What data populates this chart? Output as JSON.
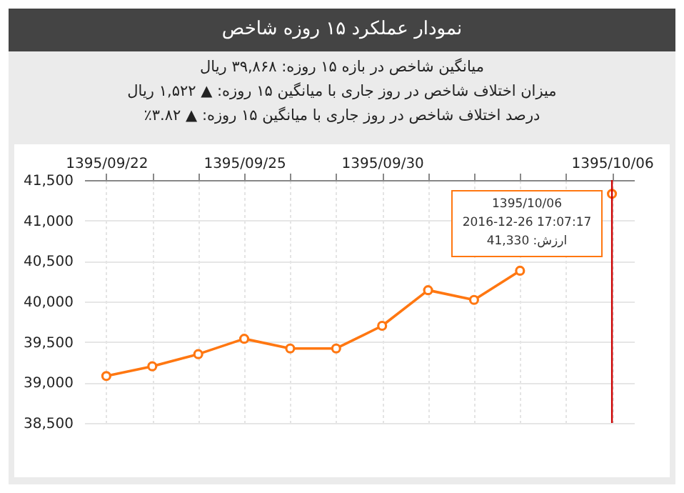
{
  "chart_data": {
    "type": "line",
    "title": "نمودار عملکرد ۱۵ روزه شاخص",
    "annotations": [
      "میانگین شاخص در بازه ۱۵ روزه: ۳۹,۸۶۸ ریال",
      "میزان اختلاف شاخص در روز جاری با میانگین ۱۵ روزه: ▲ ۱,۵۲۲ ریال",
      "درصد اختلاف شاخص در روز جاری با میانگین ۱۵ روزه: ▲ ۳.۸۲٪",
      "1395/10/06\n2016-12-26 17:07:17\nارزش: 41,330"
    ],
    "categories": [
      "1395/09/22",
      null,
      null,
      "1395/09/25",
      null,
      null,
      "1395/09/30",
      null,
      null,
      null,
      null,
      "1395/10/06"
    ],
    "series": [
      {
        "color": "#ff7711",
        "values": [
          39080,
          39200,
          39350,
          39540,
          39420,
          39420,
          39700,
          40140,
          40020,
          40380,
          null,
          41330
        ]
      }
    ],
    "ylim": [
      38500,
      41500
    ],
    "yticks": [
      {
        "value": 38500,
        "label": "38,500"
      },
      {
        "value": 39000,
        "label": "39,000"
      },
      {
        "value": 39500,
        "label": "39,500"
      },
      {
        "value": 40000,
        "label": "40,000"
      },
      {
        "value": 40500,
        "label": "40,500"
      },
      {
        "value": 41000,
        "label": "41,000"
      },
      {
        "value": 41500,
        "label": "41,500"
      }
    ],
    "ref_lines": [
      {
        "axis": "x",
        "value": "1395/10/06",
        "color": "#cc0000"
      }
    ],
    "grid": true,
    "marker": "circle",
    "legend": false
  }
}
